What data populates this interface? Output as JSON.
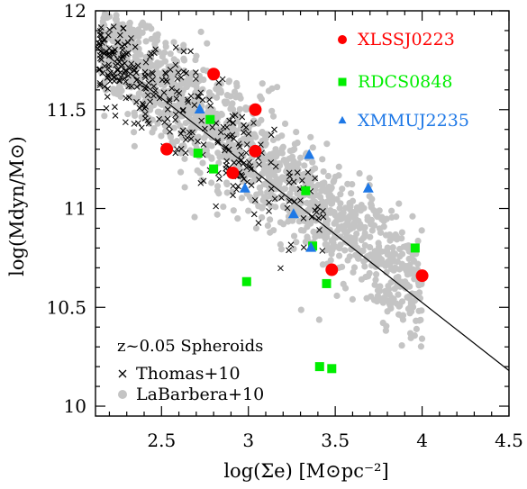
{
  "chart_data": {
    "type": "scatter",
    "xlabel": "log(Σe) [M⊙pc⁻²]",
    "ylabel": "log(Mdyn/M⊙)",
    "xlim": [
      2.12,
      4.5
    ],
    "ylim": [
      9.95,
      12.0
    ],
    "x_ticks": [
      "2.5",
      "3",
      "3.5",
      "4",
      "4.5"
    ],
    "y_ticks": [
      "10",
      "10.5",
      "11",
      "11.5",
      "12"
    ],
    "grid": false,
    "legend_placement": "top-right",
    "inset_legend_placement": "bottom-left",
    "inset_title": "z~0.05 Spheroids",
    "fit_line": {
      "x": [
        2.12,
        4.5
      ],
      "y": [
        11.82,
        10.18
      ]
    },
    "series": [
      {
        "name": "XLSSJ0223",
        "marker": "circle",
        "color": "#ff0000",
        "x": [
          2.8,
          3.04,
          2.53,
          3.04,
          2.91,
          3.48,
          4.0
        ],
        "y": [
          11.68,
          11.5,
          11.3,
          11.29,
          11.18,
          10.69,
          10.66
        ]
      },
      {
        "name": "RDCS0848",
        "marker": "square",
        "color": "#00ee00",
        "x": [
          2.78,
          2.71,
          2.8,
          3.33,
          3.37,
          2.99,
          3.45,
          3.96,
          3.41,
          3.48
        ],
        "y": [
          11.45,
          11.28,
          11.2,
          11.09,
          10.81,
          10.63,
          10.62,
          10.8,
          10.2,
          10.19
        ]
      },
      {
        "name": "XMMUJ2235",
        "marker": "triangle",
        "color": "#1e78e6",
        "x": [
          2.72,
          3.35,
          2.98,
          3.69,
          3.26,
          3.36
        ],
        "y": [
          11.5,
          11.27,
          11.1,
          11.1,
          10.97,
          10.8
        ]
      },
      {
        "name": "Thomas+10",
        "marker": "cross",
        "color": "#000000"
      },
      {
        "name": "LaBarbera+10",
        "marker": "circle",
        "color": "#c4c4c4"
      }
    ]
  }
}
